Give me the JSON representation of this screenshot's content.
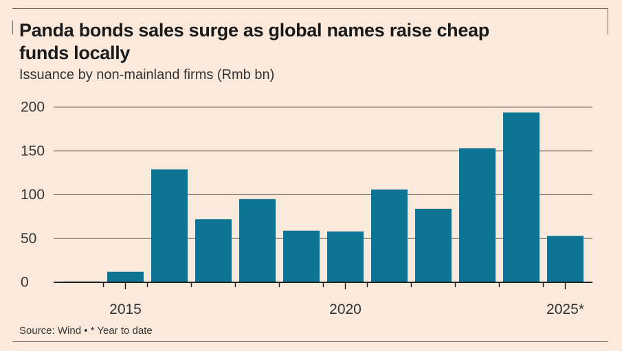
{
  "header": {
    "title": "Panda bonds sales surge as global names raise cheap funds locally",
    "subtitle": "Issuance by non-mainland firms (Rmb bn)"
  },
  "footer": {
    "source": "Source: Wind • * Year to date"
  },
  "colors": {
    "bar": "#0f7394",
    "background": "#fbe9dc",
    "grid": "#6b6460",
    "text": "#333333"
  },
  "chart_data": {
    "type": "bar",
    "title": "Panda bonds sales surge as global names raise cheap funds locally",
    "subtitle": "Issuance by non-mainland firms (Rmb bn)",
    "xlabel": "",
    "ylabel": "Issuance by non-mainland firms (Rmb bn)",
    "categories": [
      "2014",
      "2015",
      "2016",
      "2017",
      "2018",
      "2019",
      "2020",
      "2021",
      "2022",
      "2023",
      "2024",
      "2025*"
    ],
    "values": [
      1,
      12,
      129,
      72,
      95,
      59,
      58,
      106,
      84,
      153,
      194,
      53
    ],
    "x_tick_labels": [
      {
        "category": "2015",
        "label": "2015"
      },
      {
        "category": "2020",
        "label": "2020"
      },
      {
        "category": "2025*",
        "label": "2025*"
      }
    ],
    "y_ticks": [
      0,
      50,
      100,
      150,
      200
    ],
    "ylim": [
      0,
      200
    ],
    "grid": true,
    "legend": "none"
  }
}
